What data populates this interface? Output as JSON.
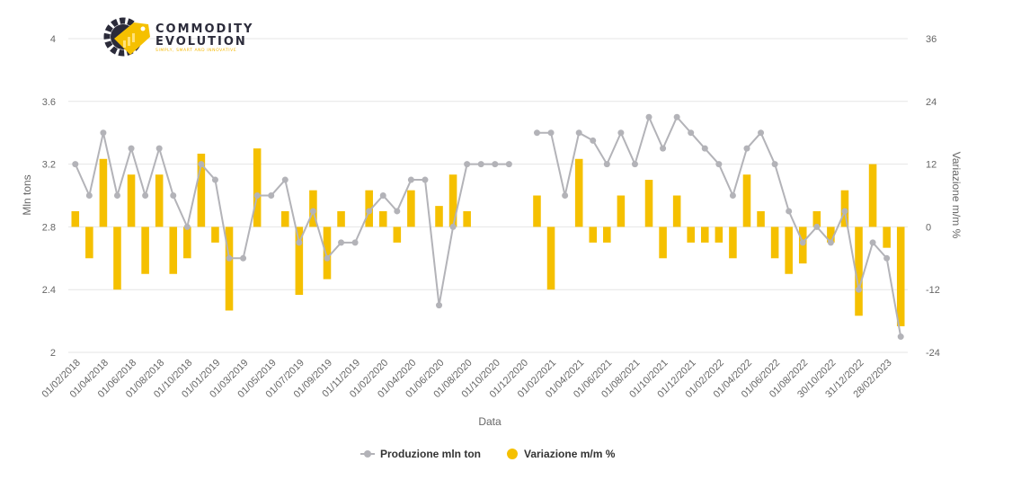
{
  "logo": {
    "line1": "COMMODITY",
    "line2": "EVOLUTION",
    "tagline": "SIMPLY, SMART AND INNOVATIVE"
  },
  "colors": {
    "line": "#b3b3b8",
    "bars": "#f5c000",
    "grid": "#e6e6e6",
    "logo_gear": "#2b2b3a",
    "logo_tag": "#f5c000"
  },
  "chart_data": {
    "type": "bar+line",
    "xlabel": "Data",
    "ylabel_left": "Mln tons",
    "ylabel_right": "Variazione m/m %",
    "ylim_left": [
      2,
      4
    ],
    "ylim_right": [
      -24,
      36
    ],
    "yticks_left": [
      "2",
      "2.4",
      "2.8",
      "3.2",
      "3.6",
      "4"
    ],
    "yticks_right": [
      "-24",
      "-12",
      "0",
      "12",
      "24",
      "36"
    ],
    "x_tick_labels": [
      "01/02/2018",
      "01/04/2018",
      "01/06/2018",
      "01/08/2018",
      "01/10/2018",
      "01/01/2019",
      "01/03/2019",
      "01/05/2019",
      "01/07/2019",
      "01/09/2019",
      "01/11/2019",
      "01/02/2020",
      "01/04/2020",
      "01/06/2020",
      "01/08/2020",
      "01/10/2020",
      "01/12/2020",
      "01/02/2021",
      "01/04/2021",
      "01/06/2021",
      "01/08/2021",
      "01/10/2021",
      "01/12/2021",
      "01/02/2022",
      "01/04/2022",
      "01/06/2022",
      "01/08/2022",
      "30/10/2022",
      "31/12/2022",
      "28/02/2023"
    ],
    "grid": true,
    "legend_position": "bottom",
    "series": [
      {
        "name": "Produzione mln ton",
        "type": "line",
        "axis": "left",
        "values": [
          3.2,
          3.0,
          3.4,
          3.0,
          3.3,
          3.0,
          3.3,
          3.0,
          2.8,
          3.2,
          3.1,
          2.6,
          2.6,
          3.0,
          3.0,
          3.1,
          2.7,
          2.9,
          2.6,
          2.7,
          2.7,
          2.9,
          3.0,
          2.9,
          3.1,
          3.1,
          2.3,
          2.8,
          3.2,
          3.2,
          3.2,
          3.2,
          null,
          3.4,
          3.4,
          3.0,
          3.4,
          3.35,
          3.2,
          3.4,
          3.2,
          3.5,
          3.3,
          3.5,
          3.4,
          3.3,
          3.2,
          3.0,
          3.3,
          3.4,
          3.2,
          2.9,
          2.7,
          2.8,
          2.7,
          2.9,
          2.4,
          2.7,
          2.6,
          2.1
        ]
      },
      {
        "name": "Variazione m/m %",
        "type": "bar",
        "axis": "right",
        "values": [
          3,
          -6,
          13,
          -12,
          10,
          -9,
          10,
          -9,
          -6,
          14,
          -3,
          -16,
          null,
          15,
          null,
          3,
          -13,
          7,
          -10,
          3,
          null,
          7,
          3,
          -3,
          7,
          null,
          4,
          10,
          3,
          null,
          null,
          null,
          null,
          6,
          -12,
          null,
          13,
          -3,
          -3,
          6,
          null,
          9,
          -6,
          6,
          -3,
          -3,
          -3,
          -6,
          10,
          3,
          -6,
          -9,
          -7,
          3,
          -3,
          7,
          -17,
          12,
          -4,
          -19
        ]
      }
    ]
  },
  "legend": {
    "items": [
      "Produzione mln ton",
      "Variazione m/m %"
    ]
  }
}
